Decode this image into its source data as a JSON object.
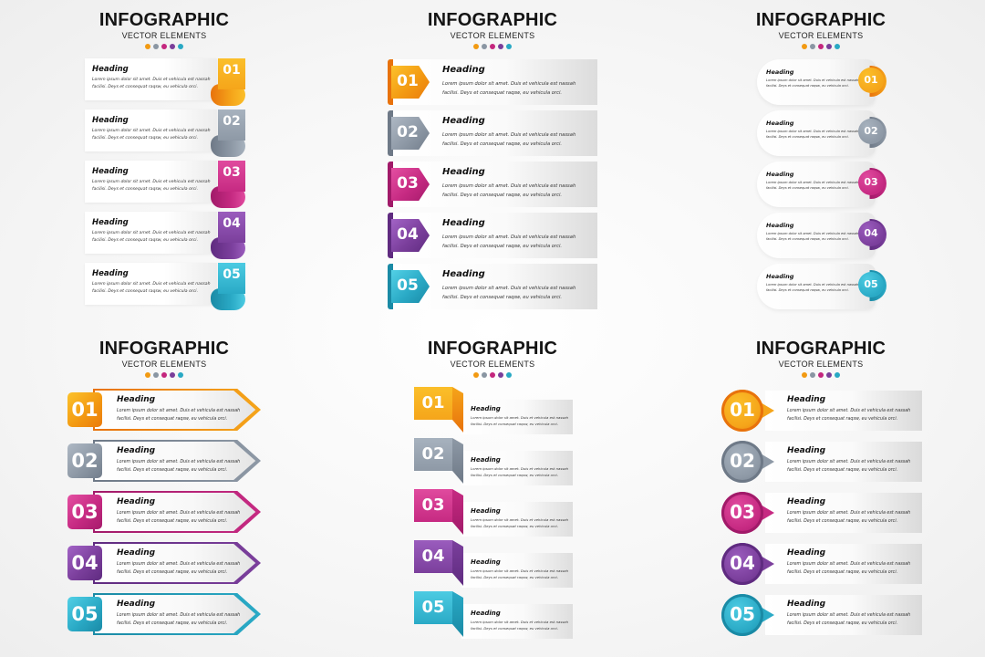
{
  "colors": {
    "orange": "#f29a12",
    "gray": "#8a96a3",
    "magenta": "#c4277e",
    "purple": "#7a3e9a",
    "teal": "#29a9c4"
  },
  "panels": [
    {
      "title": "INFOGRAPHIC",
      "subtitle": "VECTOR ELEMENTS",
      "items": [
        {
          "number": "01",
          "heading": "Heading",
          "body": "Lorem ipsum dolor sit amet. Duis et vehicula est nassah facilisi. Deys et consequat raqsw, eu vehicula orci."
        },
        {
          "number": "02",
          "heading": "Heading",
          "body": "Lorem ipsum dolor sit amet. Duis et vehicula est nassah facilisi. Deys et consequat raqsw, eu vehicula orci."
        },
        {
          "number": "03",
          "heading": "Heading",
          "body": "Lorem ipsum dolor sit amet. Duis et vehicula est nassah facilisi. Deys et consequat raqsw, eu vehicula orci."
        },
        {
          "number": "04",
          "heading": "Heading",
          "body": "Lorem ipsum dolor sit amet. Duis et vehicula est nassah facilisi. Deys et consequat raqsw, eu vehicula orci."
        },
        {
          "number": "05",
          "heading": "Heading",
          "body": "Lorem ipsum dolor sit amet. Duis et vehicula est nassah facilisi. Deys et consequat raqsw, eu vehicula orci."
        }
      ]
    },
    {
      "title": "INFOGRAPHIC",
      "subtitle": "VECTOR ELEMENTS",
      "items": [
        {
          "number": "01",
          "heading": "Heading",
          "body": "Lorem ipsum dolor sit amet. Duis et vehicula est nassah facilisi. Deys et consequat raqsw, eu vehicula orci."
        },
        {
          "number": "02",
          "heading": "Heading",
          "body": "Lorem ipsum dolor sit amet. Duis et vehicula est nassah facilisi. Deys et consequat raqsw, eu vehicula orci."
        },
        {
          "number": "03",
          "heading": "Heading",
          "body": "Lorem ipsum dolor sit amet. Duis et vehicula est nassah facilisi. Deys et consequat raqsw, eu vehicula orci."
        },
        {
          "number": "04",
          "heading": "Heading",
          "body": "Lorem ipsum dolor sit amet. Duis et vehicula est nassah facilisi. Deys et consequat raqsw, eu vehicula orci."
        },
        {
          "number": "05",
          "heading": "Heading",
          "body": "Lorem ipsum dolor sit amet. Duis et vehicula est nassah facilisi. Deys et consequat raqsw, eu vehicula orci."
        }
      ]
    },
    {
      "title": "INFOGRAPHIC",
      "subtitle": "VECTOR ELEMENTS",
      "items": [
        {
          "number": "01",
          "heading": "Heading",
          "body": "Lorem ipsum dolor sit amet. Duis et vehicula est nassah facilisi. Deys et consequat raqsw, eu vehicula orci."
        },
        {
          "number": "02",
          "heading": "Heading",
          "body": "Lorem ipsum dolor sit amet. Duis et vehicula est nassah facilisi. Deys et consequat raqsw, eu vehicula orci."
        },
        {
          "number": "03",
          "heading": "Heading",
          "body": "Lorem ipsum dolor sit amet. Duis et vehicula est nassah facilisi. Deys et consequat raqsw, eu vehicula orci."
        },
        {
          "number": "04",
          "heading": "Heading",
          "body": "Lorem ipsum dolor sit amet. Duis et vehicula est nassah facilisi. Deys et consequat raqsw, eu vehicula orci."
        },
        {
          "number": "05",
          "heading": "Heading",
          "body": "Lorem ipsum dolor sit amet. Duis et vehicula est nassah facilisi. Deys et consequat raqsw, eu vehicula orci."
        }
      ]
    },
    {
      "title": "INFOGRAPHIC",
      "subtitle": "VECTOR ELEMENTS",
      "items": [
        {
          "number": "01",
          "heading": "Heading",
          "body": "Lorem ipsum dolor sit amet. Duis et vehicula est nassah facilisi. Deys et consequat raqsw, eu vehicula orci."
        },
        {
          "number": "02",
          "heading": "Heading",
          "body": "Lorem ipsum dolor sit amet. Duis et vehicula est nassah facilisi. Deys et consequat raqsw, eu vehicula orci."
        },
        {
          "number": "03",
          "heading": "Heading",
          "body": "Lorem ipsum dolor sit amet. Duis et vehicula est nassah facilisi. Deys et consequat raqsw, eu vehicula orci."
        },
        {
          "number": "04",
          "heading": "Heading",
          "body": "Lorem ipsum dolor sit amet. Duis et vehicula est nassah facilisi. Deys et consequat raqsw, eu vehicula orci."
        },
        {
          "number": "05",
          "heading": "Heading",
          "body": "Lorem ipsum dolor sit amet. Duis et vehicula est nassah facilisi. Deys et consequat raqsw, eu vehicula orci."
        }
      ]
    },
    {
      "title": "INFOGRAPHIC",
      "subtitle": "VECTOR ELEMENTS",
      "items": [
        {
          "number": "01",
          "heading": "Heading",
          "body": "Lorem ipsum dolor sit amet. Duis et vehicula est nassah facilisi. Deys et consequat raqsw, eu vehicula orci."
        },
        {
          "number": "02",
          "heading": "Heading",
          "body": "Lorem ipsum dolor sit amet. Duis et vehicula est nassah facilisi. Deys et consequat raqsw, eu vehicula orci."
        },
        {
          "number": "03",
          "heading": "Heading",
          "body": "Lorem ipsum dolor sit amet. Duis et vehicula est nassah facilisi. Deys et consequat raqsw, eu vehicula orci."
        },
        {
          "number": "04",
          "heading": "Heading",
          "body": "Lorem ipsum dolor sit amet. Duis et vehicula est nassah facilisi. Deys et consequat raqsw, eu vehicula orci."
        },
        {
          "number": "05",
          "heading": "Heading",
          "body": "Lorem ipsum dolor sit amet. Duis et vehicula est nassah facilisi. Deys et consequat raqsw, eu vehicula orci."
        }
      ]
    },
    {
      "title": "INFOGRAPHIC",
      "subtitle": "VECTOR ELEMENTS",
      "items": [
        {
          "number": "01",
          "heading": "Heading",
          "body": "Lorem ipsum dolor sit amet. Duis et vehicula est nassah facilisi. Deys et consequat raqsw, eu vehicula orci."
        },
        {
          "number": "02",
          "heading": "Heading",
          "body": "Lorem ipsum dolor sit amet. Duis et vehicula est nassah facilisi. Deys et consequat raqsw, eu vehicula orci."
        },
        {
          "number": "03",
          "heading": "Heading",
          "body": "Lorem ipsum dolor sit amet. Duis et vehicula est nassah facilisi. Deys et consequat raqsw, eu vehicula orci."
        },
        {
          "number": "04",
          "heading": "Heading",
          "body": "Lorem ipsum dolor sit amet. Duis et vehicula est nassah facilisi. Deys et consequat raqsw, eu vehicula orci."
        },
        {
          "number": "05",
          "heading": "Heading",
          "body": "Lorem ipsum dolor sit amet. Duis et vehicula est nassah facilisi. Deys et consequat raqsw, eu vehicula orci."
        }
      ]
    }
  ]
}
